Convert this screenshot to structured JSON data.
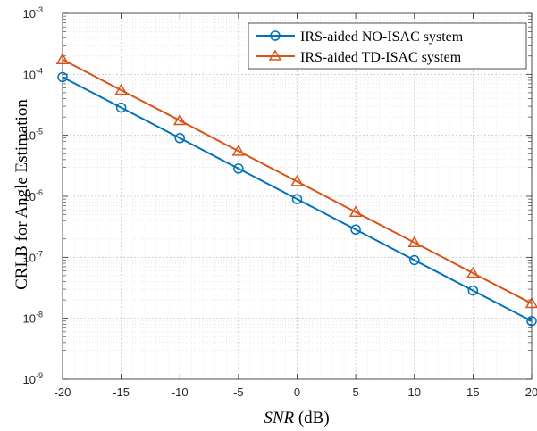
{
  "chart_data": {
    "type": "line",
    "x": [
      -20,
      -15,
      -10,
      -5,
      0,
      5,
      10,
      15,
      20
    ],
    "xlabel_italic": "SNR",
    "xlabel_rest": " (dB)",
    "ylabel": "CRLB for Angle Estimation",
    "xlim": [
      -20,
      20
    ],
    "ylim": [
      1e-09,
      0.001
    ],
    "yscale": "log",
    "grid": true,
    "legend_position": "top-right",
    "xticks": [
      -20,
      -15,
      -10,
      -5,
      0,
      5,
      10,
      15,
      20
    ],
    "xtick_labels": [
      "-20",
      "-15",
      "-10",
      "-5",
      "0",
      "5",
      "10",
      "15",
      "20"
    ],
    "yticks": [
      {
        "base": "10",
        "exp": "-9"
      },
      {
        "base": "10",
        "exp": "-8"
      },
      {
        "base": "10",
        "exp": "-7"
      },
      {
        "base": "10",
        "exp": "-6"
      },
      {
        "base": "10",
        "exp": "-5"
      },
      {
        "base": "10",
        "exp": "-4"
      },
      {
        "base": "10",
        "exp": "-3"
      }
    ],
    "series": [
      {
        "name": "IRS-aided NO-ISAC system",
        "color": "#0072BD",
        "marker": "circle",
        "values": [
          9e-05,
          2.85e-05,
          9e-06,
          2.85e-06,
          9e-07,
          2.85e-07,
          9e-08,
          2.85e-08,
          9e-09
        ]
      },
      {
        "name": "IRS-aided TD-ISAC system",
        "color": "#D95319",
        "marker": "triangle",
        "values": [
          0.000175,
          5.5e-05,
          1.75e-05,
          5.5e-06,
          1.75e-06,
          5.5e-07,
          1.75e-07,
          5.5e-08,
          1.75e-08
        ]
      }
    ]
  }
}
